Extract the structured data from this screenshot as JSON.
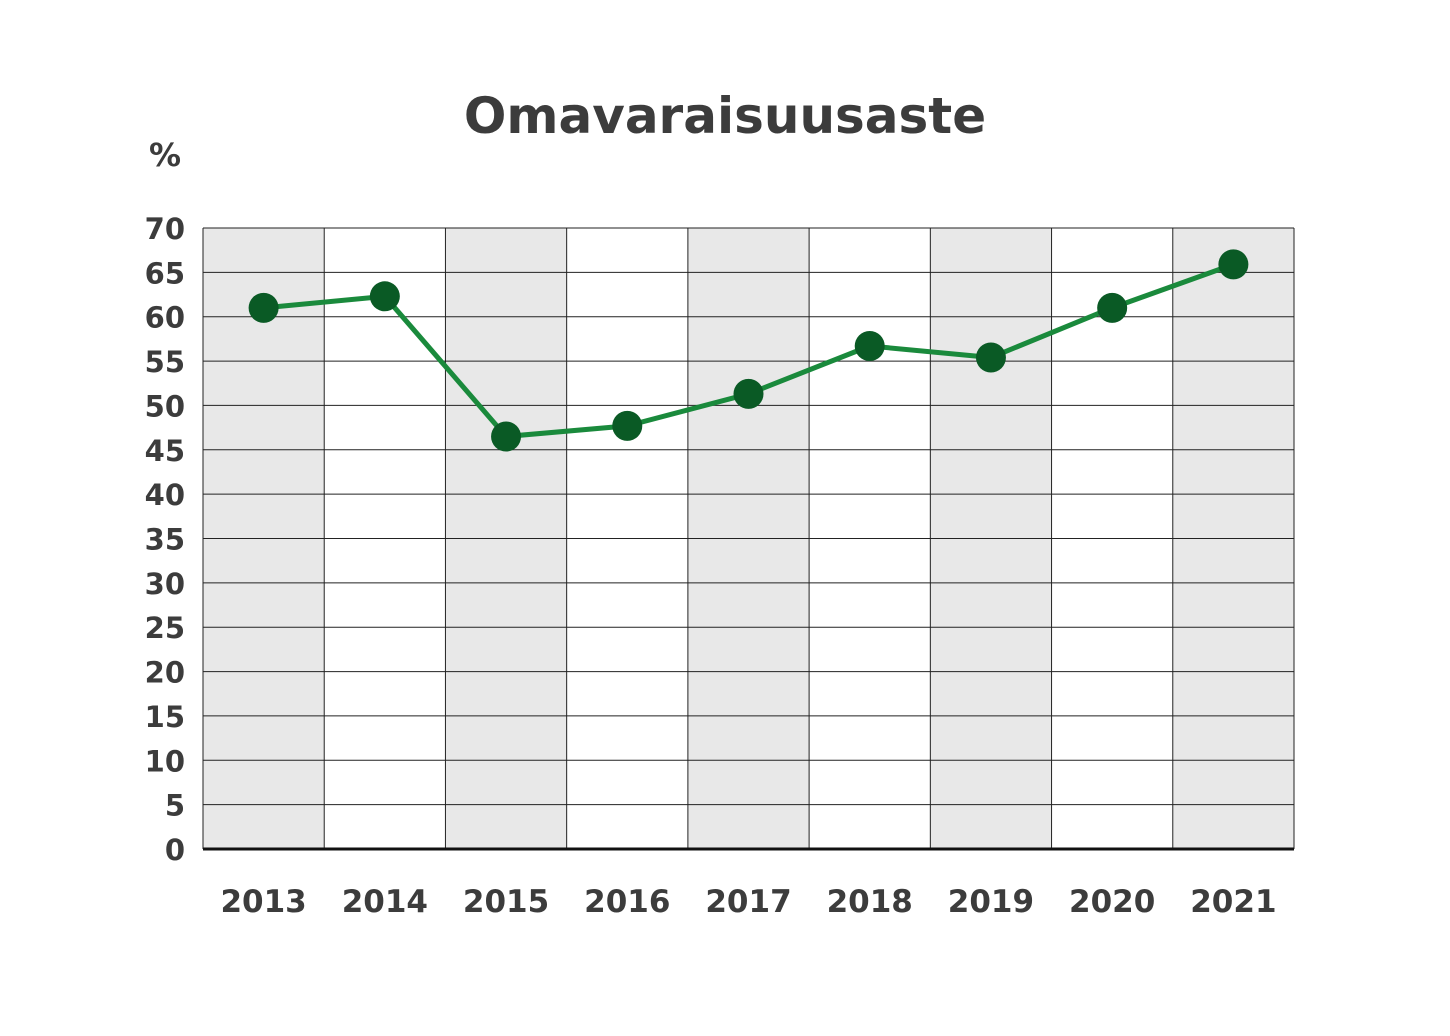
{
  "chart_data": {
    "type": "line",
    "title": "Omavaraisuusaste",
    "ylabel": "%",
    "xlabel": "",
    "categories": [
      "2013",
      "2014",
      "2015",
      "2016",
      "2017",
      "2018",
      "2019",
      "2020",
      "2021"
    ],
    "values": [
      61.0,
      62.3,
      46.5,
      47.7,
      51.3,
      56.7,
      55.4,
      61.0,
      65.9
    ],
    "ylim": [
      0,
      70
    ],
    "yticks": [
      "0",
      "5",
      "10",
      "15",
      "20",
      "25",
      "30",
      "35",
      "40",
      "45",
      "50",
      "55",
      "60",
      "65",
      "70"
    ],
    "grid": true,
    "legend": "none",
    "colors": {
      "line": "#1a8a3c",
      "marker": "#0a5a25",
      "band": "#e8e8e8",
      "grid": "#222222",
      "text": "#3c3c3c"
    }
  }
}
